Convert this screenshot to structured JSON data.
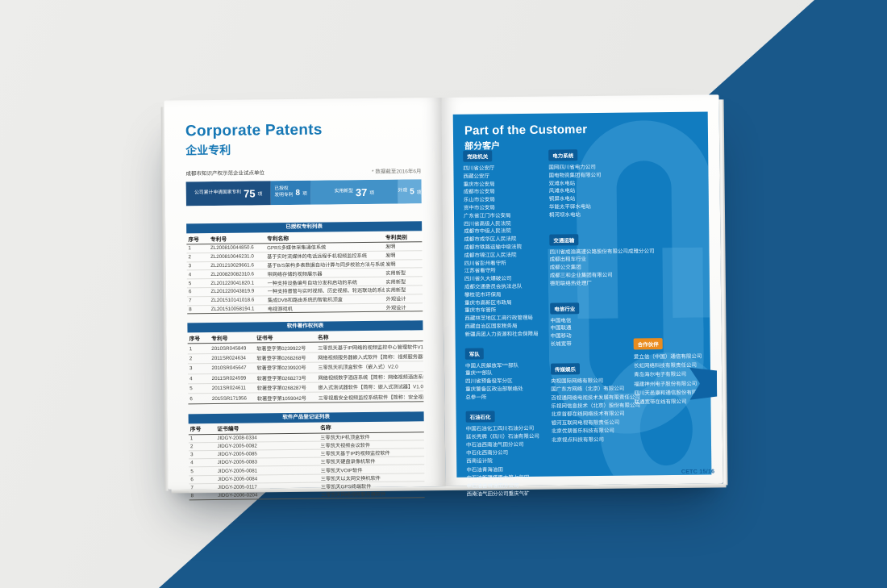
{
  "colors": {
    "bg-blue": "#19588a",
    "panel-blue": "#117cc0",
    "badge-blue": "#0b5c99",
    "badge-orange": "#ea8c1e",
    "table-header-blue": "#195c95",
    "accent-blue": "#1778b5",
    "pagenum-blue": "#0f5f9d"
  },
  "left_page": {
    "title_en": "Corporate Patents",
    "title_zh": "企业专利",
    "subtitle": "成都市知识产权示范企业试点单位",
    "note": "* 数据截至2016年6月",
    "stat_segments": [
      {
        "line1": "公司累计申请国家专利",
        "line2": "",
        "num": "75",
        "suffix": "项",
        "color": "#1d4f81",
        "width": "36%"
      },
      {
        "line1": "已授权",
        "line2": "发明专利",
        "num": "8",
        "suffix": "项",
        "color": "#2e7db8",
        "width": "17%"
      },
      {
        "line1": "实用新型",
        "line2": "",
        "num": "37",
        "suffix": "项",
        "color": "#4292c8",
        "width": "37%"
      },
      {
        "line1": "外观",
        "line2": "",
        "num": "5",
        "suffix": "项",
        "color": "#66abd9",
        "width": "10%"
      }
    ],
    "tables": [
      {
        "title": "已授权专利列表",
        "headers": [
          "序号",
          "专利号",
          "专利名称",
          "专利类别"
        ],
        "rows": [
          [
            "1",
            "ZL200810044850.6",
            "GPRS多媒体采集通信系统",
            "发明"
          ],
          [
            "2",
            "ZL200810046231.0",
            "基于实时流媒体的电话远程手机视频监控系统",
            "发明"
          ],
          [
            "3",
            "ZL201210029661.6",
            "基于B/S架构多表数据自动计算与同步校验方法与系统",
            "发明"
          ],
          [
            "4",
            "ZL200820082310.6",
            "带网络存储的视频展示器",
            "实用新型"
          ],
          [
            "5",
            "ZL201220041820.1",
            "一种支持设备编号自动分发和启动的系统",
            "实用新型"
          ],
          [
            "6",
            "ZL201220043819.9",
            "一种支持督管与实时视频、历史视频、轮巡联动的系统",
            "实用新型"
          ],
          [
            "7",
            "ZL201510141018.6",
            "集成DVB和路由系统的智能机顶盒",
            "外观设计"
          ],
          [
            "8",
            "ZL201510058194.1",
            "电视游戏机",
            "外观设计"
          ]
        ]
      },
      {
        "title": "软件著作权列表",
        "headers": [
          "序号",
          "专利号",
          "证书号",
          "名称"
        ],
        "rows": [
          [
            "1",
            "2010SR045849",
            "软著登字第0239922号",
            "三零凯天基于IP网络的视频监控中心管理软件V1.4"
          ],
          [
            "2",
            "2011SR024634",
            "软著登字第0268268号",
            "网络视频服务器嵌入式软件【简称：视频服务器软件】V1.0"
          ],
          [
            "3",
            "2010SR045647",
            "软著登字第0239920号",
            "三零凯天机顶盒软件（嵌入式）V2.0"
          ],
          [
            "4",
            "2011SR024599",
            "软著登字第0268273号",
            "网络视频数字酒店系统【简称：网络视频酒店系统】V1.0"
          ],
          [
            "5",
            "2011SR024611",
            "软著登字第0268287号",
            "嵌入式测试器软件【简称：嵌入式测试器】V1.0"
          ],
          [
            "6",
            "2015SR171956",
            "软著登字第1059042号",
            "三零视盾安全视频监控系统软件【简称：安全视频监控软件】V2.0"
          ]
        ]
      },
      {
        "title": "软件产品登记证列表",
        "headers": [
          "序号",
          "证书编号",
          "名称"
        ],
        "rows": [
          [
            "1",
            "JIDGY-2008-0334",
            "三零凯天IP机顶盒软件"
          ],
          [
            "2",
            "JIDGY-2005-0082",
            "三零凯天视频会议软件"
          ],
          [
            "3",
            "JIDGY-2005-0085",
            "三零凯天基于IP的视频监控软件"
          ],
          [
            "4",
            "JIDGY-2005-0083",
            "三零凯天硬盘录像机软件"
          ],
          [
            "5",
            "JIDGY-2005-0081",
            "三零凯天VOIP软件"
          ],
          [
            "6",
            "JIDGY-2005-0084",
            "三零凯天以太网交换机软件"
          ],
          [
            "7",
            "JIDGY-2005-0117",
            "三零凯天GPS终端软件"
          ],
          [
            "8",
            "JIDGY-2006-0204",
            "三零凯天网络视频服务器软件"
          ]
        ]
      }
    ]
  },
  "right_page": {
    "title_en": "Part of the Customer",
    "title_zh": "部分客户",
    "page_number": "CETC 15/16",
    "groups": {
      "gov": {
        "label": "党政机关",
        "items": [
          "四川省公安厅",
          "西藏公安厅",
          "重庆市公安局",
          "成都市公安局",
          "乐山市公安局",
          "资中市公安局",
          "广东省江门市公安局",
          "四川省高级人民法院",
          "成都市中级人民法院",
          "成都市成华区人民法院",
          "成都市铁路运输中级法院",
          "成都市锦江区人民法院",
          "四川省彭州看守所",
          "江苏省看守所",
          "四川省久大爆破公司",
          "成都交通委员会执法总队",
          "攀枝花市环保局",
          "重庆市高新区市政局",
          "重庆市车管所",
          "西藏林芝地区工商行政管理局",
          "西藏自治区国家税务局",
          "新疆兵团人力资源和社会保障局"
        ]
      },
      "military": {
        "label": "军队",
        "items": [
          "中国人民解放军***部队",
          "重庆***部队",
          "四川省预备役军分区",
          "重庆警备区政治部联络处",
          "总参一所"
        ]
      },
      "petro": {
        "label": "石油石化",
        "items": [
          "中国石油化工四川石油分公司",
          "延长壳牌（四川）石油有限公司",
          "中石油西南油气田分公司",
          "中石化西南分公司",
          "西南设计院",
          "中石油青海油田",
          "中石油新疆塔里木第七气田",
          "中石油吉林油田分公司",
          "西南油气田分公司重庆气矿"
        ]
      },
      "power": {
        "label": "电力系统",
        "items": [
          "国网四川省电力公司",
          "国电物资集团有限公司",
          "双滩水电站",
          "风滩水电站",
          "铜屏水电站",
          "华能太平驿水电站",
          "桐河坝水电站"
        ]
      },
      "transport": {
        "label": "交通运输",
        "items": [
          "四川省成渝高速公路股份有限公司成雅分公司",
          "成都出租车行业",
          "成都公交集团",
          "成都三和企业集团有限公司",
          "德阳联络热处理厂"
        ]
      },
      "telecom": {
        "label": "电信行业",
        "items": [
          "中国电信",
          "中国联通",
          "中国移动",
          "长城宽带"
        ]
      },
      "media": {
        "label": "传媒娱乐",
        "items": [
          "央视国际网络有限公司",
          "国广东方网络（北京）有限公司",
          "百视通网络电视技术发展有限责任公司",
          "乐视网信息技术（北京）股份有限公司",
          "北京首都在线网络技术有限公司",
          "银河互联网电视有限责任公司",
          "北京优朋普乐科技有限公司",
          "北京视点科技有限公司"
        ]
      },
      "partner": {
        "label": "合作伙伴",
        "items": [
          "爱立信（中国）通信有限公司",
          "长虹网络科技有限责任公司",
          "青岛海尔电子有限公司",
          "福建神州电子股份有限公司",
          "四川天邑康和通信股份有限公司",
          "联通宽带在线有限公司"
        ]
      }
    }
  }
}
